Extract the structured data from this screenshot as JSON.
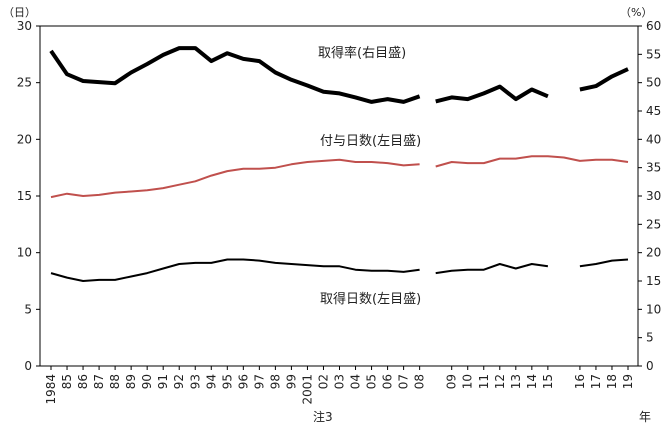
{
  "chart_data": {
    "type": "line",
    "left_axis": {
      "unit": "（日）",
      "range": [
        0,
        30
      ],
      "ticks": [
        0,
        5,
        10,
        15,
        20,
        25,
        30
      ]
    },
    "right_axis": {
      "unit": "（%）",
      "range": [
        0,
        60
      ],
      "ticks": [
        0,
        5,
        10,
        15,
        20,
        25,
        30,
        35,
        40,
        45,
        50,
        55,
        60
      ]
    },
    "x_labels": [
      "1984",
      "85",
      "86",
      "87",
      "88",
      "89",
      "90",
      "91",
      "92",
      "93",
      "94",
      "95",
      "96",
      "97",
      "98",
      "99",
      "2001",
      "02",
      "03",
      "04",
      "05",
      "06",
      "07",
      "08",
      "08",
      "09",
      "10",
      "11",
      "12",
      "13",
      "14",
      "15",
      "15",
      "16",
      "17",
      "18",
      "19"
    ],
    "x_unit": "年",
    "x_note": "注3",
    "break_after_index": 23,
    "series": [
      {
        "name": "取得率(右目盛)",
        "axis": "right",
        "color": "#000000",
        "values": [
          55.6,
          51.5,
          50.3,
          50.1,
          49.9,
          51.8,
          53.3,
          54.9,
          56.1,
          56.1,
          53.8,
          55.2,
          54.2,
          53.8,
          51.8,
          50.5,
          49.5,
          48.4,
          48.1,
          47.4,
          46.6,
          47.1,
          46.6,
          47.6,
          46.7,
          47.4,
          47.1,
          48.1,
          49.3,
          47.1,
          48.8,
          47.6,
          null,
          48.8,
          49.4,
          51.1,
          52.4
        ]
      },
      {
        "name": "付与日数(左目盛)",
        "axis": "left",
        "color": "#c0504d",
        "values": [
          14.9,
          15.2,
          15.0,
          15.1,
          15.3,
          15.4,
          15.5,
          15.7,
          16.0,
          16.3,
          16.8,
          17.2,
          17.4,
          17.4,
          17.5,
          17.8,
          18.0,
          18.1,
          18.2,
          18.0,
          18.0,
          17.9,
          17.7,
          17.8,
          17.6,
          18.0,
          17.9,
          17.9,
          18.3,
          18.3,
          18.5,
          18.5,
          18.4,
          18.1,
          18.2,
          18.2,
          18.0
        ]
      },
      {
        "name": "取得日数(左目盛)",
        "axis": "left",
        "color": "#000000",
        "values": [
          8.2,
          7.8,
          7.5,
          7.6,
          7.6,
          7.9,
          8.2,
          8.6,
          9.0,
          9.1,
          9.1,
          9.4,
          9.4,
          9.3,
          9.1,
          9.0,
          8.9,
          8.8,
          8.8,
          8.5,
          8.4,
          8.4,
          8.3,
          8.5,
          8.2,
          8.4,
          8.5,
          8.5,
          9.0,
          8.6,
          9.0,
          8.8,
          null,
          8.8,
          9.0,
          9.3,
          9.4
        ]
      }
    ]
  }
}
